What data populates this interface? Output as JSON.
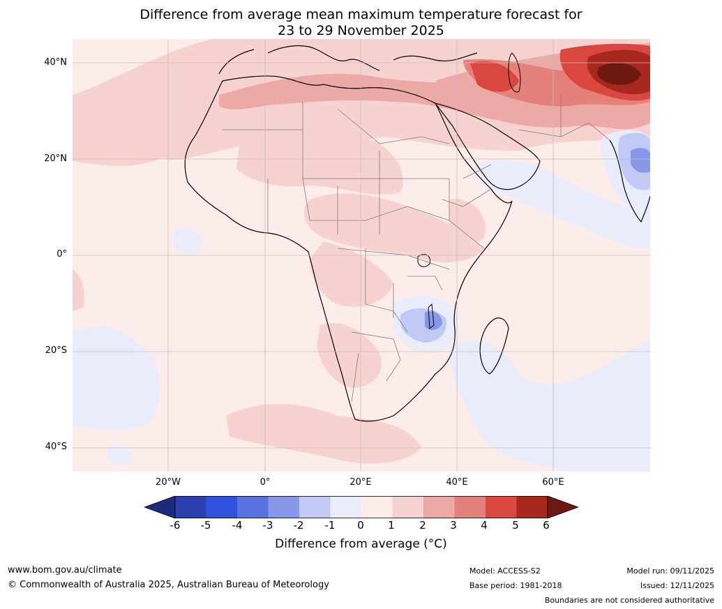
{
  "title": {
    "line1": "Difference from average mean maximum temperature forecast for",
    "line2": "23 to 29 November 2025"
  },
  "map": {
    "lat_labels": [
      "40°N",
      "20°N",
      "0°",
      "20°S",
      "40°S"
    ],
    "lon_labels": [
      "20°W",
      "0°",
      "20°E",
      "40°E",
      "60°E"
    ]
  },
  "colorbar": {
    "ticks": [
      "-6",
      "-5",
      "-4",
      "-3",
      "-2",
      "-1",
      "0",
      "1",
      "2",
      "3",
      "4",
      "5",
      "6"
    ],
    "colors": [
      "#1c2a80",
      "#2a3fb0",
      "#3050de",
      "#5a73e0",
      "#8798e8",
      "#c2c9f4",
      "#e9ecfb",
      "#fcecea",
      "#f6d3d0",
      "#eda9a5",
      "#e4817a",
      "#d9473f",
      "#a8281f",
      "#6e1812"
    ],
    "label": "Difference from average (°C)"
  },
  "footer": {
    "website": "www.bom.gov.au/climate",
    "copyright": "© Commonwealth of Australia 2025, Australian Bureau of Meteorology",
    "model": "Model: ACCESS-S2",
    "base_period": "Base period: 1981-2018",
    "model_run": "Model run: 09/11/2025",
    "issued": "Issued: 12/11/2025",
    "disclaimer": "Boundaries are not considered authoritative"
  }
}
